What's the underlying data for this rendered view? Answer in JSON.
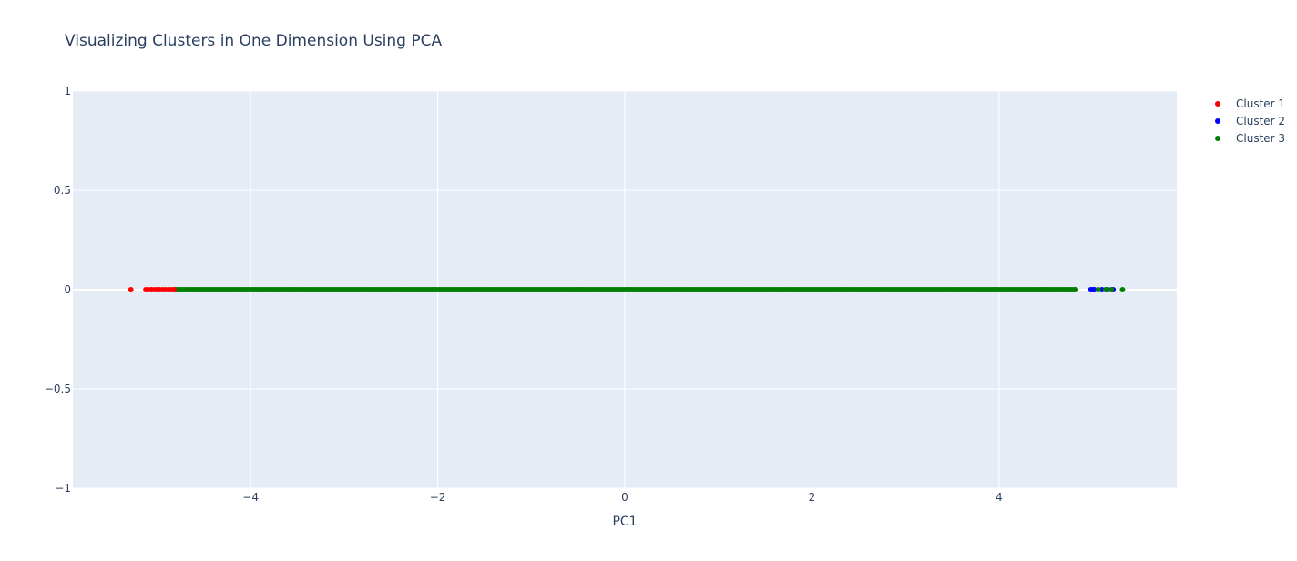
{
  "chart_data": {
    "type": "scatter",
    "title": "Visualizing Clusters in One Dimension Using PCA",
    "xlabel": "PC1",
    "ylabel": "",
    "xlim": [
      -5.9,
      5.9
    ],
    "ylim": [
      -1,
      1
    ],
    "x_ticks": [
      -4,
      -2,
      0,
      2,
      4
    ],
    "x_tick_labels": [
      "−4",
      "−2",
      "0",
      "2",
      "4"
    ],
    "y_ticks": [
      1,
      0.5,
      0,
      -0.5,
      -1
    ],
    "y_tick_labels": [
      "1",
      "0.5",
      "0",
      "−0.5",
      "−1"
    ],
    "grid": true,
    "legend_position": "top-right",
    "plot_background": "#e5ecf6",
    "grid_color": "#ffffff",
    "series": [
      {
        "name": "Cluster 1",
        "color": "#ff0000",
        "x": [
          -5.28,
          -5.12,
          -5.09,
          -5.06,
          -5.03,
          -5.0,
          -4.97,
          -4.94,
          -4.91,
          -4.88,
          -4.85,
          -4.82
        ],
        "y": [
          0,
          0,
          0,
          0,
          0,
          0,
          0,
          0,
          0,
          0,
          0,
          0
        ]
      },
      {
        "name": "Cluster 2",
        "color": "#0000ff",
        "x": [
          4.98,
          5.0,
          5.02,
          5.1,
          5.16,
          5.22
        ],
        "y": [
          0,
          0,
          0,
          0,
          0,
          0
        ]
      },
      {
        "name": "Cluster 3",
        "color": "#008000",
        "range_min": -4.82,
        "range_max": 4.82,
        "extra_x": [
          5.06,
          5.14,
          5.2,
          5.32
        ],
        "y_value": 0
      }
    ]
  }
}
